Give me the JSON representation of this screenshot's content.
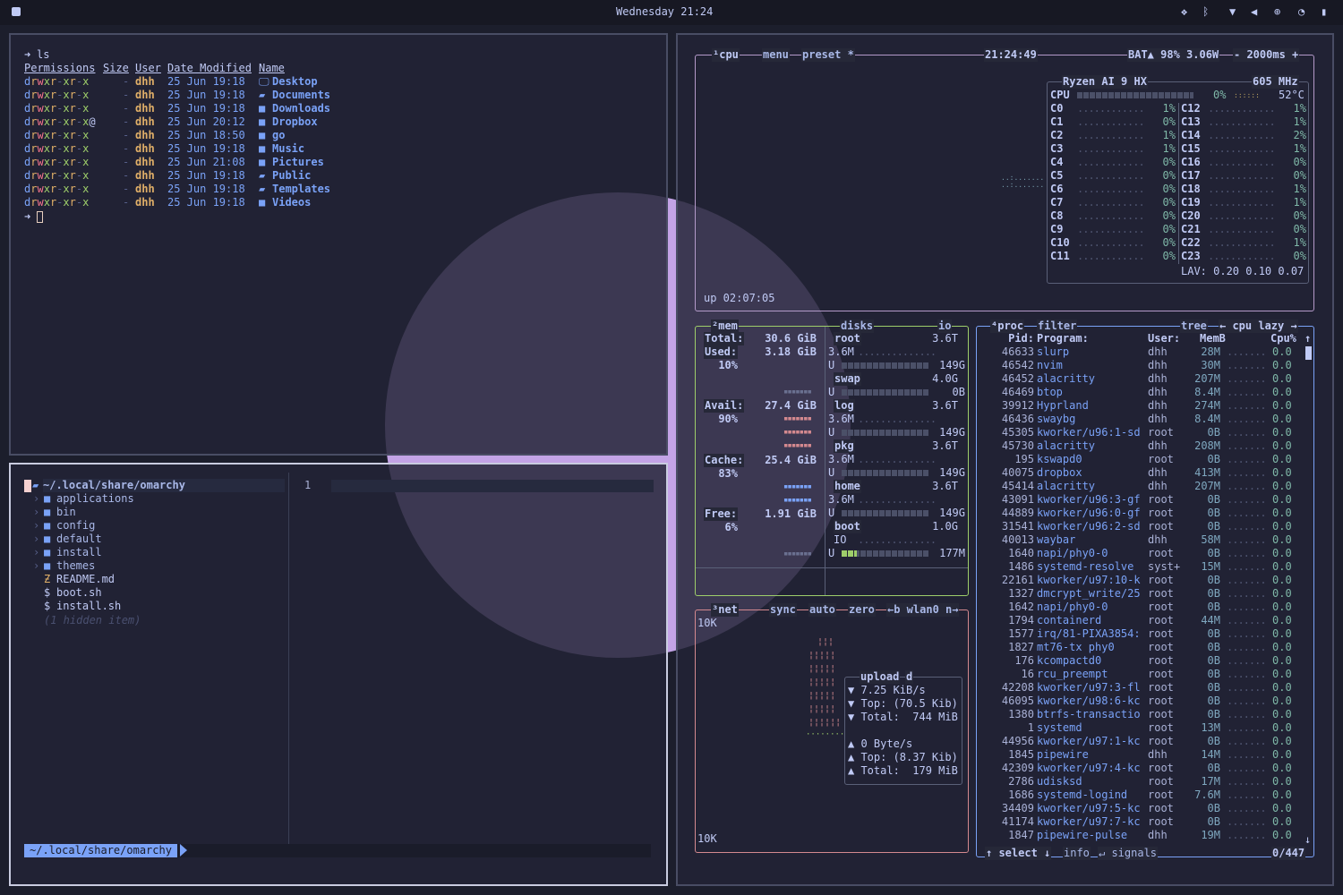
{
  "topbar": {
    "clock": "Wednesday 21:24",
    "icons": [
      "dropbox-icon",
      "bluetooth-icon",
      "wifi-icon",
      "volume-icon",
      "cpu-icon",
      "speedometer-icon",
      "battery-icon"
    ]
  },
  "colors": {
    "cpu_box": "#b49ac9",
    "mem_box": "#9ece6a",
    "net_box": "#d4898f",
    "proc_box": "#7aa2f7",
    "text": "#c0caf5",
    "dir": "#7aa2f7",
    "user": "#e0af68"
  },
  "terminal": {
    "command": "ls",
    "headers": [
      "Permissions",
      "Size",
      "User",
      "Date Modified",
      "Name"
    ],
    "rows": [
      {
        "perm": "drwxr-xr-x",
        "size": "-",
        "user": "dhh",
        "date": "25 Jun 19:18",
        "icon": "desktop-icon",
        "glyph": "🖵",
        "name": "Desktop"
      },
      {
        "perm": "drwxr-xr-x",
        "size": "-",
        "user": "dhh",
        "date": "25 Jun 19:18",
        "icon": "folder-open-icon",
        "glyph": "▰",
        "name": "Documents"
      },
      {
        "perm": "drwxr-xr-x",
        "size": "-",
        "user": "dhh",
        "date": "25 Jun 19:18",
        "icon": "folder-download-icon",
        "glyph": "■",
        "name": "Downloads"
      },
      {
        "perm": "drwxr-xr-x@",
        "size": "-",
        "user": "dhh",
        "date": "25 Jun 20:12",
        "icon": "folder-icon",
        "glyph": "■",
        "name": "Dropbox"
      },
      {
        "perm": "drwxr-xr-x",
        "size": "-",
        "user": "dhh",
        "date": "25 Jun 18:50",
        "icon": "folder-icon",
        "glyph": "■",
        "name": "go"
      },
      {
        "perm": "drwxr-xr-x",
        "size": "-",
        "user": "dhh",
        "date": "25 Jun 19:18",
        "icon": "folder-music-icon",
        "glyph": "■",
        "name": "Music"
      },
      {
        "perm": "drwxr-xr-x",
        "size": "-",
        "user": "dhh",
        "date": "25 Jun 21:08",
        "icon": "folder-image-icon",
        "glyph": "■",
        "name": "Pictures"
      },
      {
        "perm": "drwxr-xr-x",
        "size": "-",
        "user": "dhh",
        "date": "25 Jun 19:18",
        "icon": "folder-open-icon",
        "glyph": "▰",
        "name": "Public"
      },
      {
        "perm": "drwxr-xr-x",
        "size": "-",
        "user": "dhh",
        "date": "25 Jun 19:18",
        "icon": "folder-open-icon",
        "glyph": "▰",
        "name": "Templates"
      },
      {
        "perm": "drwxr-xr-x",
        "size": "-",
        "user": "dhh",
        "date": "25 Jun 19:18",
        "icon": "video-icon",
        "glyph": "■",
        "name": "Videos"
      }
    ]
  },
  "nvim": {
    "root": "~/.local/share/omarchy",
    "items": [
      {
        "type": "dir",
        "name": "applications"
      },
      {
        "type": "dir",
        "name": "bin"
      },
      {
        "type": "dir",
        "name": "config"
      },
      {
        "type": "dir",
        "name": "default"
      },
      {
        "type": "dir",
        "name": "install"
      },
      {
        "type": "dir",
        "name": "themes"
      },
      {
        "type": "md",
        "name": "README.md"
      },
      {
        "type": "sh",
        "name": "boot.sh"
      },
      {
        "type": "sh",
        "name": "install.sh"
      }
    ],
    "hidden": "(1 hidden item)",
    "line_number": "1",
    "statusline": "~/.local/share/omarchy"
  },
  "btop": {
    "cpu": {
      "tabs": [
        "¹cpu",
        "menu",
        "preset *"
      ],
      "time": "21:24:49",
      "battery": "BAT▲ 98% 3.06W",
      "interval": "- 2000ms +",
      "uptime": "up 02:07:05",
      "model": "Ryzen AI 9 HX",
      "freq": "605 MHz",
      "total_label": "CPU",
      "total_pct": "0%",
      "temp": "52°C",
      "lav": "LAV: 0.20 0.10 0.07",
      "cores": [
        {
          "n": "C0",
          "p": "1%"
        },
        {
          "n": "C1",
          "p": "0%"
        },
        {
          "n": "C2",
          "p": "1%"
        },
        {
          "n": "C3",
          "p": "1%"
        },
        {
          "n": "C4",
          "p": "0%"
        },
        {
          "n": "C5",
          "p": "0%"
        },
        {
          "n": "C6",
          "p": "0%"
        },
        {
          "n": "C7",
          "p": "0%"
        },
        {
          "n": "C8",
          "p": "0%"
        },
        {
          "n": "C9",
          "p": "0%"
        },
        {
          "n": "C10",
          "p": "0%"
        },
        {
          "n": "C11",
          "p": "0%"
        },
        {
          "n": "C12",
          "p": "1%"
        },
        {
          "n": "C13",
          "p": "1%"
        },
        {
          "n": "C14",
          "p": "2%"
        },
        {
          "n": "C15",
          "p": "1%"
        },
        {
          "n": "C16",
          "p": "0%"
        },
        {
          "n": "C17",
          "p": "0%"
        },
        {
          "n": "C18",
          "p": "1%"
        },
        {
          "n": "C19",
          "p": "1%"
        },
        {
          "n": "C20",
          "p": "0%"
        },
        {
          "n": "C21",
          "p": "0%"
        },
        {
          "n": "C22",
          "p": "1%"
        },
        {
          "n": "C23",
          "p": "0%"
        }
      ]
    },
    "mem": {
      "title": "²mem",
      "rows": [
        {
          "label": "Total:",
          "value": "30.6 GiB",
          "pct": ""
        },
        {
          "label": "Used:",
          "value": "3.18 GiB",
          "pct": "10%"
        },
        {
          "label": "Avail:",
          "value": "27.4 GiB",
          "pct": "90%"
        },
        {
          "label": "Cache:",
          "value": "25.4 GiB",
          "pct": "83%"
        },
        {
          "label": "Free:",
          "value": "1.91 GiB",
          "pct": "6%"
        }
      ]
    },
    "disks": {
      "title": "disks",
      "io": "io",
      "rows": [
        {
          "name": "root",
          "size": "3.6T",
          "io": "3.6M",
          "used": "149G",
          "fill": 0
        },
        {
          "name": "swap",
          "size": "4.0G",
          "io": "",
          "used": "0B",
          "fill": 0
        },
        {
          "name": "log",
          "size": "3.6T",
          "io": "3.6M",
          "used": "149G",
          "fill": 0
        },
        {
          "name": "pkg",
          "size": "3.6T",
          "io": "3.6M",
          "used": "149G",
          "fill": 0
        },
        {
          "name": "home",
          "size": "3.6T",
          "io": "3.6M",
          "used": "149G",
          "fill": 0
        },
        {
          "name": "boot",
          "size": "1.0G",
          "io": "IO",
          "used": "177M",
          "fill": 0.17
        }
      ],
      "u": "U"
    },
    "net": {
      "title": "³net",
      "tabs": [
        "sync",
        "auto",
        "zero",
        "←b wlan0 n→"
      ],
      "scale_top": "10K",
      "scale_bottom": "10K",
      "box_title": "upload",
      "box_key": "d",
      "stats": [
        "▼ 7.25 KiB/s",
        "▼ Top: (70.5 Kib)",
        "▼ Total:  744 MiB",
        "",
        "▲ 0 Byte/s",
        "▲ Top: (8.37 Kib)",
        "▲ Total:  179 MiB"
      ]
    },
    "proc": {
      "title": "⁴proc",
      "filter": "filter",
      "tree": "tree",
      "sort": "← cpu lazy →",
      "headers": {
        "pid": "Pid:",
        "program": "Program:",
        "user": "User:",
        "mem": "MemB",
        "cpu": "Cpu%"
      },
      "rows": [
        [
          "46633",
          "slurp",
          "dhh",
          "28M"
        ],
        [
          "46542",
          "nvim",
          "dhh",
          "30M"
        ],
        [
          "46452",
          "alacritty",
          "dhh",
          "207M"
        ],
        [
          "46469",
          "btop",
          "dhh",
          "8.4M"
        ],
        [
          "39912",
          "Hyprland",
          "dhh",
          "274M"
        ],
        [
          "46436",
          "swaybg",
          "dhh",
          "8.4M"
        ],
        [
          "45305",
          "kworker/u96:1-sd",
          "root",
          "0B"
        ],
        [
          "45730",
          "alacritty",
          "dhh",
          "208M"
        ],
        [
          "195",
          "kswapd0",
          "root",
          "0B"
        ],
        [
          "40075",
          "dropbox",
          "dhh",
          "413M"
        ],
        [
          "45414",
          "alacritty",
          "dhh",
          "207M"
        ],
        [
          "43091",
          "kworker/u96:3-gf",
          "root",
          "0B"
        ],
        [
          "44889",
          "kworker/u96:0-gf",
          "root",
          "0B"
        ],
        [
          "31541",
          "kworker/u96:2-sd",
          "root",
          "0B"
        ],
        [
          "40013",
          "waybar",
          "dhh",
          "58M"
        ],
        [
          "1640",
          "napi/phy0-0",
          "root",
          "0B"
        ],
        [
          "1486",
          "systemd-resolve",
          "syst+",
          "15M"
        ],
        [
          "22161",
          "kworker/u97:10-k",
          "root",
          "0B"
        ],
        [
          "1327",
          "dmcrypt_write/25",
          "root",
          "0B"
        ],
        [
          "1642",
          "napi/phy0-0",
          "root",
          "0B"
        ],
        [
          "1794",
          "containerd",
          "root",
          "44M"
        ],
        [
          "1577",
          "irq/81-PIXA3854:",
          "root",
          "0B"
        ],
        [
          "1827",
          "mt76-tx phy0",
          "root",
          "0B"
        ],
        [
          "176",
          "kcompactd0",
          "root",
          "0B"
        ],
        [
          "16",
          "rcu_preempt",
          "root",
          "0B"
        ],
        [
          "42208",
          "kworker/u97:3-fl",
          "root",
          "0B"
        ],
        [
          "46095",
          "kworker/u98:6-kc",
          "root",
          "0B"
        ],
        [
          "1380",
          "btrfs-transactio",
          "root",
          "0B"
        ],
        [
          "1",
          "systemd",
          "root",
          "13M"
        ],
        [
          "44956",
          "kworker/u97:1-kc",
          "root",
          "0B"
        ],
        [
          "1845",
          "pipewire",
          "dhh",
          "14M"
        ],
        [
          "42309",
          "kworker/u97:4-kc",
          "root",
          "0B"
        ],
        [
          "2786",
          "udisksd",
          "root",
          "17M"
        ],
        [
          "1686",
          "systemd-logind",
          "root",
          "7.6M"
        ],
        [
          "34409",
          "kworker/u97:5-kc",
          "root",
          "0B"
        ],
        [
          "41174",
          "kworker/u97:7-kc",
          "root",
          "0B"
        ],
        [
          "1847",
          "pipewire-pulse",
          "dhh",
          "19M"
        ]
      ],
      "cpu_value": "0.0",
      "footer": {
        "select": "↑ select ↓",
        "info": "info",
        "signals": "↵ signals",
        "count": "0/447"
      }
    }
  }
}
